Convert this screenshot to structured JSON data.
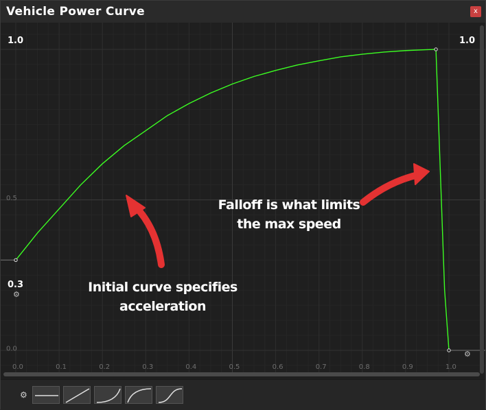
{
  "window": {
    "title": "Vehicle Power Curve",
    "close_label": "x"
  },
  "chart_data": {
    "type": "line",
    "xlabel": "",
    "ylabel": "",
    "xlim": [
      0.0,
      1.0
    ],
    "ylim": [
      0.0,
      1.0
    ],
    "x_ticks": [
      "0.0",
      "0.1",
      "0.2",
      "0.3",
      "0.4",
      "0.5",
      "0.6",
      "0.7",
      "0.8",
      "0.9",
      "1.0"
    ],
    "y_ticks": [
      "0.0",
      "0.5"
    ],
    "grid": true,
    "series": [
      {
        "color": "#3cff22",
        "x": [
          0.0,
          0.05,
          0.1,
          0.15,
          0.2,
          0.25,
          0.3,
          0.35,
          0.4,
          0.45,
          0.5,
          0.55,
          0.6,
          0.65,
          0.7,
          0.75,
          0.8,
          0.85,
          0.9,
          0.95,
          0.97,
          0.98,
          0.99,
          1.0
        ],
        "y": [
          0.3,
          0.39,
          0.47,
          0.55,
          0.62,
          0.68,
          0.73,
          0.78,
          0.82,
          0.855,
          0.885,
          0.91,
          0.93,
          0.948,
          0.962,
          0.975,
          0.984,
          0.991,
          0.996,
          0.999,
          1.0,
          0.6,
          0.2,
          0.0
        ]
      }
    ],
    "point_labels": [
      {
        "text": "1.0",
        "side": "left"
      },
      {
        "text": "1.0",
        "side": "right"
      },
      {
        "text": "0.3",
        "side": "left"
      }
    ]
  },
  "annotations": {
    "left_line1": "Initial curve specifies",
    "left_line2": "acceleration",
    "right_line1": "Falloff is what limits",
    "right_line2": "the max speed"
  },
  "icons": {
    "gear": "⚙"
  },
  "presets": [
    {
      "name": "constant"
    },
    {
      "name": "linear"
    },
    {
      "name": "ease-in"
    },
    {
      "name": "ease-out"
    },
    {
      "name": "ease-in-out"
    }
  ]
}
